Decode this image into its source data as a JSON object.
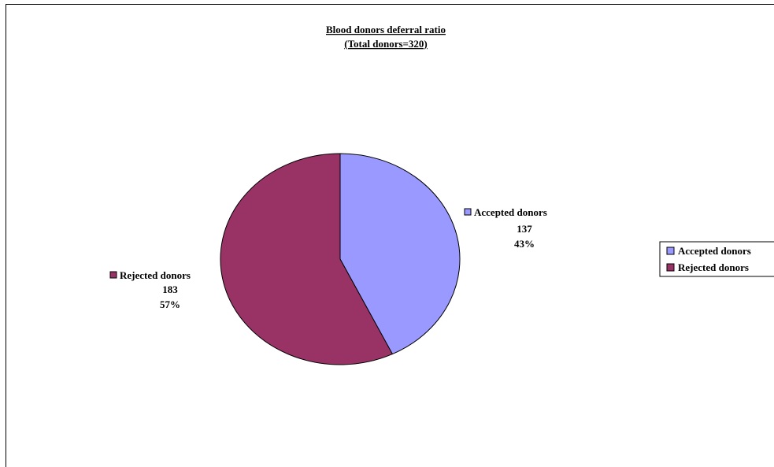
{
  "chart_data": {
    "type": "pie",
    "title": "Blood donors deferral ratio",
    "subtitle": "(Total donors=320)",
    "series": [
      {
        "name": "Accepted donors",
        "value": 137,
        "percent": "43%",
        "color": "#9999FF"
      },
      {
        "name": "Rejected donors",
        "value": 183,
        "percent": "57%",
        "color": "#993366"
      }
    ],
    "legend_position": "right"
  }
}
